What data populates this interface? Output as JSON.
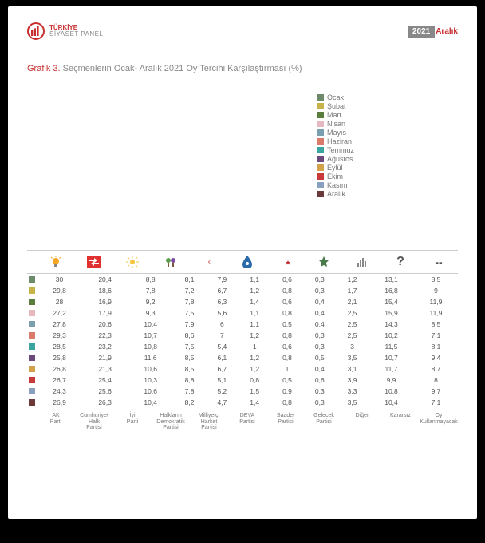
{
  "banner": {
    "brand_top": "TÜRKİYE",
    "brand_sub": "SİYASET PANELİ",
    "year": "2021",
    "month": "Aralık"
  },
  "title": {
    "prefix": "Grafik 3.",
    "text": "Seçmenlerin Ocak- Aralık 2021 Oy Tercihi Karşılaştırması (%)"
  },
  "chart": {
    "type": "grouped-bar",
    "y_max": 32,
    "months": [
      "Ocak",
      "Şubat",
      "Mart",
      "Nisan",
      "Mayıs",
      "Haziran",
      "Temmuz",
      "Ağustos",
      "Eylül",
      "Ekim",
      "Kasım",
      "Aralık"
    ],
    "month_colors": [
      "#6d8a6d",
      "#c8b34a",
      "#5a7d3c",
      "#e6b8c0",
      "#7aa0b0",
      "#d97a6a",
      "#3aa5a0",
      "#6a4a7a",
      "#d4a24a",
      "#c83a3a",
      "#8aa0c0",
      "#6a3a3a"
    ],
    "parties": [
      {
        "key": "akp",
        "label": "AK\nParti",
        "icon": "bulb",
        "icon_color": "#f5a623",
        "values": [
          30,
          29.8,
          28,
          27.2,
          27.8,
          29.3,
          28.5,
          25.8,
          26.8,
          26.7,
          24.3,
          26.9
        ]
      },
      {
        "key": "chp",
        "label": "Cumhuriyet\nHalk\nPartisi",
        "icon": "arrows",
        "icon_color": "#e03030",
        "values": [
          20.4,
          18.6,
          16.9,
          17.9,
          20.6,
          22.3,
          23.2,
          21.9,
          21.3,
          25.4,
          25.6,
          26.3
        ]
      },
      {
        "key": "iyi",
        "label": "İyi\nParti",
        "icon": "sun",
        "icon_color": "#f5c542",
        "values": [
          8.8,
          7.8,
          9.2,
          9.3,
          10.4,
          10.7,
          10.8,
          11.6,
          10.6,
          10.3,
          10.6,
          10.4
        ]
      },
      {
        "key": "hdp",
        "label": "Halkların\nDemokratik\nPartisi",
        "icon": "tree",
        "icon_color": "#5a9c4a",
        "values": [
          8.1,
          7.2,
          7.8,
          7.5,
          7.9,
          8.6,
          7.5,
          8.5,
          8.5,
          8.8,
          7.8,
          8.2
        ]
      },
      {
        "key": "mhp",
        "label": "Milliyetçi\nHarket\nPartisi",
        "icon": "crescents",
        "icon_color": "#c83030",
        "values": [
          7.9,
          6.7,
          6.3,
          5.6,
          6,
          7,
          5.4,
          6.1,
          6.7,
          5.1,
          5.2,
          4.7
        ]
      },
      {
        "key": "deva",
        "label": "DEVA\nPartisi",
        "icon": "drop",
        "icon_color": "#2a6aa8",
        "values": [
          1.1,
          1.2,
          1.4,
          1.1,
          1.1,
          1.2,
          1,
          1.2,
          1.2,
          0.8,
          1.5,
          1.4
        ]
      },
      {
        "key": "saadet",
        "label": "Saadet\nPartisi",
        "icon": "crescent-star",
        "icon_color": "#c83030",
        "values": [
          0.6,
          0.8,
          0.6,
          0.8,
          0.5,
          0.8,
          0.6,
          0.8,
          1,
          0.5,
          0.9,
          0.8
        ]
      },
      {
        "key": "gelecek",
        "label": "Gelecek\nPartisi",
        "icon": "leaf",
        "icon_color": "#4a7a4a",
        "values": [
          0.3,
          0.3,
          0.4,
          0.4,
          0.4,
          0.3,
          0.3,
          0.5,
          0.4,
          0.6,
          0.3,
          0.3
        ]
      },
      {
        "key": "diger",
        "label": "Diğer",
        "icon": "bars",
        "icon_color": "#888",
        "values": [
          1.2,
          1.7,
          2.1,
          2.5,
          2.5,
          2.5,
          3,
          3.5,
          3.1,
          3.9,
          3.3,
          3.5
        ]
      },
      {
        "key": "kararsiz",
        "label": "Kararsız",
        "icon": "question",
        "icon_color": "#555",
        "values": [
          13.1,
          16.8,
          15.4,
          15.9,
          14.3,
          10.2,
          11.5,
          10.7,
          11.7,
          9.9,
          10.8,
          10.4
        ]
      },
      {
        "key": "oykullanmayacak",
        "label": "Oy\nKullanmayacak",
        "icon": "dashes",
        "icon_color": "#555",
        "values": [
          8.5,
          9,
          11.9,
          11.9,
          8.5,
          7.1,
          8.1,
          9.4,
          8.7,
          8,
          9.7,
          7.1
        ]
      }
    ],
    "label_fontsize": 7,
    "title_fontsize": 11
  }
}
